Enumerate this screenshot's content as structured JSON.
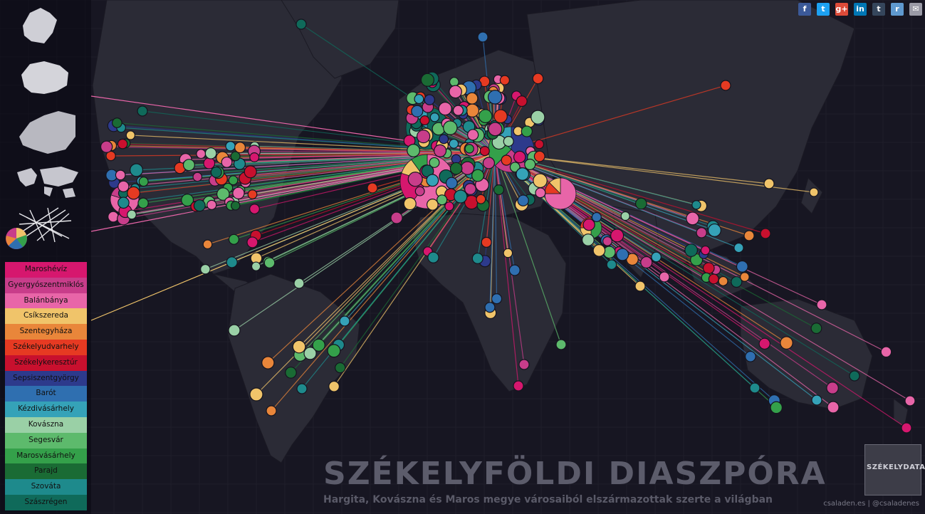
{
  "title": "SZÉKELYFÖLDI DIASZPÓRA",
  "subtitle": "Hargita, Kovászna és Maros megye városaiból elszármazottak szerte a világban",
  "credit": "csaladen.es | @csaladenes",
  "logo": "SZÉKELYDATA",
  "share": [
    {
      "name": "facebook",
      "glyph": "f",
      "color": "#3b5998"
    },
    {
      "name": "twitter",
      "glyph": "t",
      "color": "#1da1f2"
    },
    {
      "name": "google-plus",
      "glyph": "g+",
      "color": "#dd4b39"
    },
    {
      "name": "linkedin",
      "glyph": "in",
      "color": "#0077b5"
    },
    {
      "name": "tumblr",
      "glyph": "t",
      "color": "#35465c"
    },
    {
      "name": "reddit",
      "glyph": "r",
      "color": "#5f99cf"
    },
    {
      "name": "email",
      "glyph": "✉",
      "color": "#9a9aa6"
    }
  ],
  "views": [
    "Székelyföld",
    "Románia",
    "Európa",
    "Világ",
    "Vonalak",
    "Kördiagram"
  ],
  "legend": [
    {
      "label": "Maroshévíz",
      "color": "#d6176e"
    },
    {
      "label": "Gyergyószentmiklós",
      "color": "#c83d8a"
    },
    {
      "label": "Balánbánya",
      "color": "#e865a8"
    },
    {
      "label": "Csíkszereda",
      "color": "#f0c46a"
    },
    {
      "label": "Szentegyháza",
      "color": "#e9863a"
    },
    {
      "label": "Székelyudvarhely",
      "color": "#e63a22"
    },
    {
      "label": "Székelykeresztúr",
      "color": "#c8102e"
    },
    {
      "label": "Sepsiszentgyörgy",
      "color": "#2d3a8c"
    },
    {
      "label": "Barót",
      "color": "#2f6fb0"
    },
    {
      "label": "Kézdivásárhely",
      "color": "#35a2b8"
    },
    {
      "label": "Kovászna",
      "color": "#9ad0a6"
    },
    {
      "label": "Segesvár",
      "color": "#5dba6c"
    },
    {
      "label": "Marosvásárhely",
      "color": "#34a04a"
    },
    {
      "label": "Parajd",
      "color": "#1a6b34"
    },
    {
      "label": "Szováta",
      "color": "#1e8a8c"
    },
    {
      "label": "Szászrégen",
      "color": "#0f6a5a"
    }
  ]
}
